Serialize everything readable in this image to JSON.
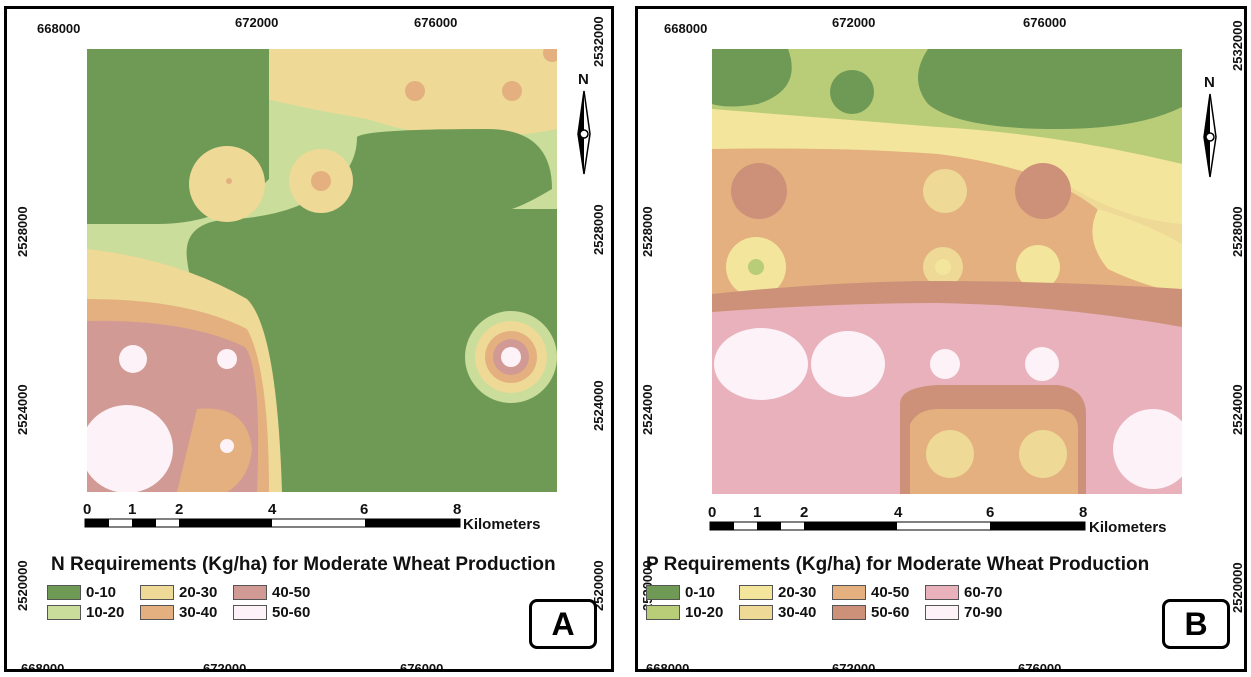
{
  "colors": {
    "c0": "#6f9a56",
    "c10": "#cadd9a",
    "c20": "#eed996",
    "c30": "#e4b07f",
    "c40": "#d29a94",
    "c50": "#fcf2f7",
    "p10": "#b9cc78",
    "p20": "#f3e69c",
    "p50": "#cc9178",
    "p60": "#e8b1bc"
  },
  "north_label": "N",
  "scale": {
    "labels": [
      "0",
      "1",
      "2",
      "4",
      "6",
      "8"
    ],
    "unit": "Kilometers"
  },
  "map_a": {
    "title": "N Requirements (Kg/ha) for Moderate Wheat Production",
    "badge": "A",
    "top_ticks": [
      "668000",
      "672000",
      "676000"
    ],
    "bottom_ticks": [
      "668000",
      "672000",
      "676000"
    ],
    "left_ticks": [
      "2528000",
      "2524000",
      "2520000"
    ],
    "right_ticks": [
      "2532000",
      "2528000",
      "2524000",
      "2520000"
    ],
    "legend": [
      {
        "label": "0-10",
        "color": "#6f9a56"
      },
      {
        "label": "20-30",
        "color": "#eed996"
      },
      {
        "label": "40-50",
        "color": "#d29a94"
      },
      {
        "label": "10-20",
        "color": "#cadd9a"
      },
      {
        "label": "30-40",
        "color": "#e4b07f"
      },
      {
        "label": "50-60",
        "color": "#fcf2f7"
      }
    ]
  },
  "map_b": {
    "title": "P Requirements (Kg/ha) for Moderate Wheat Production",
    "badge": "B",
    "top_ticks": [
      "668000",
      "672000",
      "676000"
    ],
    "bottom_ticks": [
      "668000",
      "672000",
      "676000"
    ],
    "left_ticks": [
      "2528000",
      "2524000",
      "2520000"
    ],
    "right_ticks": [
      "2532000",
      "2528000",
      "2524000",
      "2520000"
    ],
    "legend": [
      {
        "label": "0-10",
        "color": "#6f9a56"
      },
      {
        "label": "20-30",
        "color": "#f3e69c"
      },
      {
        "label": "40-50",
        "color": "#e4b07f"
      },
      {
        "label": "60-70",
        "color": "#e8b1bc"
      },
      {
        "label": "10-20",
        "color": "#b9cc78"
      },
      {
        "label": "30-40",
        "color": "#eed996"
      },
      {
        "label": "50-60",
        "color": "#cc9178"
      },
      {
        "label": "70-90",
        "color": "#fcf2f7"
      }
    ]
  }
}
